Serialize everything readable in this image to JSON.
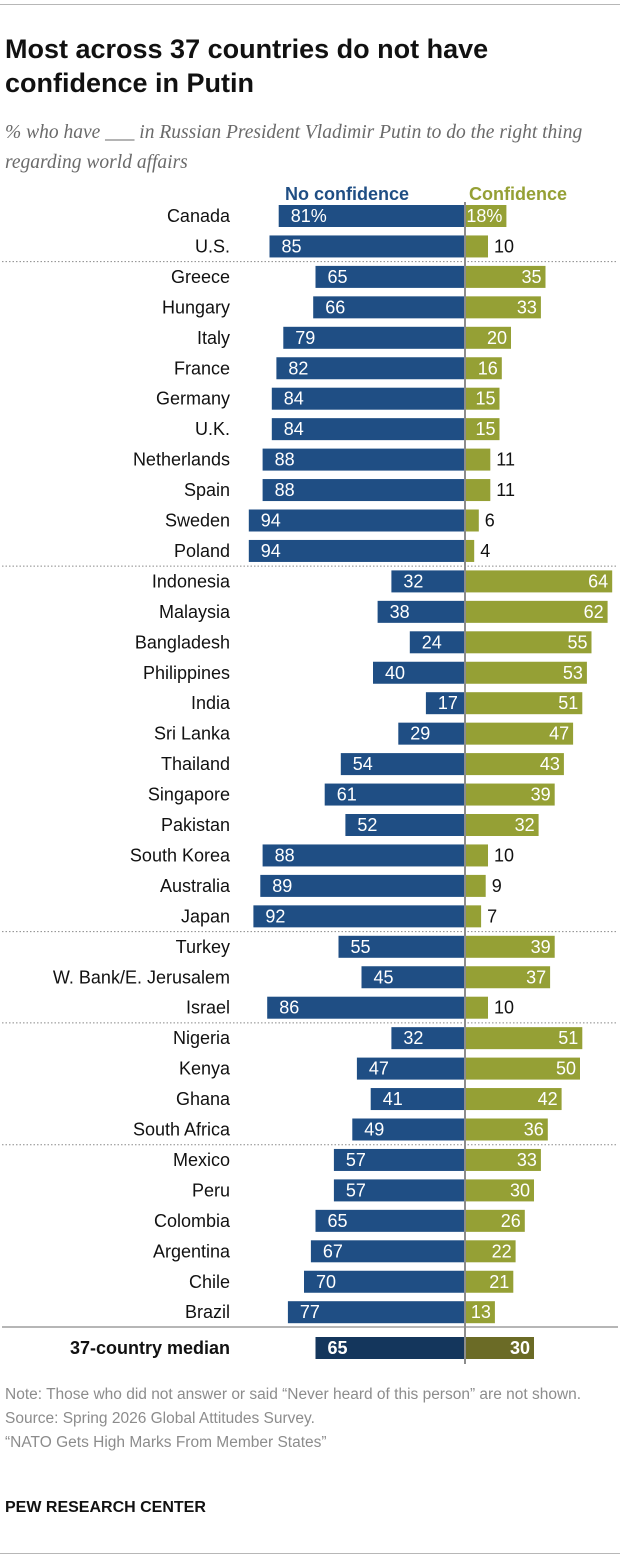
{
  "title": "Most across 37 countries do not have confidence in Putin",
  "subtitle": "% who have ___ in Russian President Vladimir Putin to do the right thing regarding world affairs",
  "colors": {
    "no_confidence": "#1f4e84",
    "confidence": "#95a035",
    "median_no_confidence": "#14365c",
    "median_confidence": "#6b6b26",
    "divider": "#8c8c8c"
  },
  "chart_data": {
    "type": "bar",
    "orientation": "horizontal-diverging",
    "legend": {
      "position": "top"
    },
    "series": [
      {
        "name": "No confidence",
        "direction": "left"
      },
      {
        "name": "Confidence",
        "direction": "right"
      }
    ],
    "rows": [
      {
        "country": "Canada",
        "no_confidence": 81,
        "confidence": 18,
        "no_label": "81%",
        "yes_label": "18%",
        "group": 1
      },
      {
        "country": "U.S.",
        "no_confidence": 85,
        "confidence": 10,
        "no_label": "85",
        "yes_label": "10",
        "group": 1
      },
      {
        "country": "Greece",
        "no_confidence": 65,
        "confidence": 35,
        "no_label": "65",
        "yes_label": "35",
        "group": 2
      },
      {
        "country": "Hungary",
        "no_confidence": 66,
        "confidence": 33,
        "no_label": "66",
        "yes_label": "33",
        "group": 2
      },
      {
        "country": "Italy",
        "no_confidence": 79,
        "confidence": 20,
        "no_label": "79",
        "yes_label": "20",
        "group": 2
      },
      {
        "country": "France",
        "no_confidence": 82,
        "confidence": 16,
        "no_label": "82",
        "yes_label": "16",
        "group": 2
      },
      {
        "country": "Germany",
        "no_confidence": 84,
        "confidence": 15,
        "no_label": "84",
        "yes_label": "15",
        "group": 2
      },
      {
        "country": "U.K.",
        "no_confidence": 84,
        "confidence": 15,
        "no_label": "84",
        "yes_label": "15",
        "group": 2
      },
      {
        "country": "Netherlands",
        "no_confidence": 88,
        "confidence": 11,
        "no_label": "88",
        "yes_label": "11",
        "group": 2
      },
      {
        "country": "Spain",
        "no_confidence": 88,
        "confidence": 11,
        "no_label": "88",
        "yes_label": "11",
        "group": 2
      },
      {
        "country": "Sweden",
        "no_confidence": 94,
        "confidence": 6,
        "no_label": "94",
        "yes_label": "6",
        "group": 2
      },
      {
        "country": "Poland",
        "no_confidence": 94,
        "confidence": 4,
        "no_label": "94",
        "yes_label": "4",
        "group": 2
      },
      {
        "country": "Indonesia",
        "no_confidence": 32,
        "confidence": 64,
        "no_label": "32",
        "yes_label": "64",
        "group": 3
      },
      {
        "country": "Malaysia",
        "no_confidence": 38,
        "confidence": 62,
        "no_label": "38",
        "yes_label": "62",
        "group": 3
      },
      {
        "country": "Bangladesh",
        "no_confidence": 24,
        "confidence": 55,
        "no_label": "24",
        "yes_label": "55",
        "group": 3
      },
      {
        "country": "Philippines",
        "no_confidence": 40,
        "confidence": 53,
        "no_label": "40",
        "yes_label": "53",
        "group": 3
      },
      {
        "country": "India",
        "no_confidence": 17,
        "confidence": 51,
        "no_label": "17",
        "yes_label": "51",
        "group": 3
      },
      {
        "country": "Sri Lanka",
        "no_confidence": 29,
        "confidence": 47,
        "no_label": "29",
        "yes_label": "47",
        "group": 3
      },
      {
        "country": "Thailand",
        "no_confidence": 54,
        "confidence": 43,
        "no_label": "54",
        "yes_label": "43",
        "group": 3
      },
      {
        "country": "Singapore",
        "no_confidence": 61,
        "confidence": 39,
        "no_label": "61",
        "yes_label": "39",
        "group": 3
      },
      {
        "country": "Pakistan",
        "no_confidence": 52,
        "confidence": 32,
        "no_label": "52",
        "yes_label": "32",
        "group": 3
      },
      {
        "country": "South Korea",
        "no_confidence": 88,
        "confidence": 10,
        "no_label": "88",
        "yes_label": "10",
        "group": 3
      },
      {
        "country": "Australia",
        "no_confidence": 89,
        "confidence": 9,
        "no_label": "89",
        "yes_label": "9",
        "group": 3
      },
      {
        "country": "Japan",
        "no_confidence": 92,
        "confidence": 7,
        "no_label": "92",
        "yes_label": "7",
        "group": 3
      },
      {
        "country": "Turkey",
        "no_confidence": 55,
        "confidence": 39,
        "no_label": "55",
        "yes_label": "39",
        "group": 4
      },
      {
        "country": "W. Bank/E. Jerusalem",
        "no_confidence": 45,
        "confidence": 37,
        "no_label": "45",
        "yes_label": "37",
        "group": 4
      },
      {
        "country": "Israel",
        "no_confidence": 86,
        "confidence": 10,
        "no_label": "86",
        "yes_label": "10",
        "group": 4
      },
      {
        "country": "Nigeria",
        "no_confidence": 32,
        "confidence": 51,
        "no_label": "32",
        "yes_label": "51",
        "group": 5
      },
      {
        "country": "Kenya",
        "no_confidence": 47,
        "confidence": 50,
        "no_label": "47",
        "yes_label": "50",
        "group": 5
      },
      {
        "country": "Ghana",
        "no_confidence": 41,
        "confidence": 42,
        "no_label": "41",
        "yes_label": "42",
        "group": 5
      },
      {
        "country": "South Africa",
        "no_confidence": 49,
        "confidence": 36,
        "no_label": "49",
        "yes_label": "36",
        "group": 5
      },
      {
        "country": "Mexico",
        "no_confidence": 57,
        "confidence": 33,
        "no_label": "57",
        "yes_label": "33",
        "group": 6
      },
      {
        "country": "Peru",
        "no_confidence": 57,
        "confidence": 30,
        "no_label": "57",
        "yes_label": "30",
        "group": 6
      },
      {
        "country": "Colombia",
        "no_confidence": 65,
        "confidence": 26,
        "no_label": "65",
        "yes_label": "26",
        "group": 6
      },
      {
        "country": "Argentina",
        "no_confidence": 67,
        "confidence": 22,
        "no_label": "67",
        "yes_label": "22",
        "group": 6
      },
      {
        "country": "Chile",
        "no_confidence": 70,
        "confidence": 21,
        "no_label": "70",
        "yes_label": "21",
        "group": 6
      },
      {
        "country": "Brazil",
        "no_confidence": 77,
        "confidence": 13,
        "no_label": "77",
        "yes_label": "13",
        "group": 6
      }
    ],
    "median": {
      "label": "37-country median",
      "no_confidence": 65,
      "confidence": 30,
      "no_label": "65",
      "yes_label": "30"
    }
  },
  "footer": {
    "note": "Note: Those who did not answer or said “Never heard of this person” are not shown.",
    "source": "Source: Spring 2026 Global Attitudes Survey.",
    "report": "“NATO Gets High Marks From Member States”",
    "brand": "PEW RESEARCH CENTER"
  }
}
